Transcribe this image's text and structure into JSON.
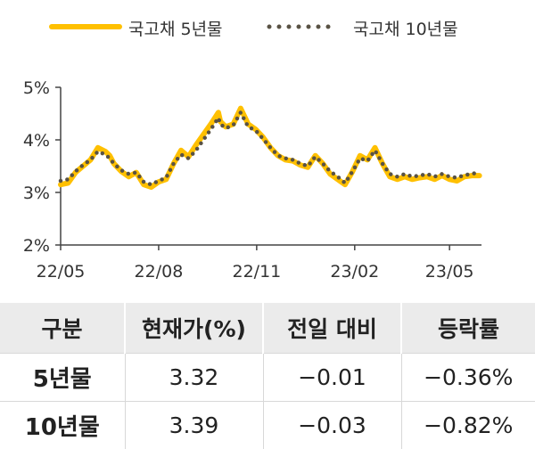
{
  "colors": {
    "series_5y": "#ffc000",
    "series_10y": "#595244",
    "axis": "#444444"
  },
  "chart_data": {
    "type": "line",
    "title": "",
    "xlabel": "",
    "ylabel": "",
    "legend_position": "top",
    "grid": false,
    "ylim": [
      2,
      5
    ],
    "yticks": [
      2,
      3,
      4,
      5
    ],
    "ytick_labels": [
      "2%",
      "3%",
      "4%",
      "5%"
    ],
    "xlim": [
      "2022-05-01",
      "2023-05-31"
    ],
    "xticks": [
      "2022-05-01",
      "2022-08-01",
      "2022-11-01",
      "2023-02-01",
      "2023-05-01"
    ],
    "xtick_labels": [
      "22/05",
      "22/08",
      "22/11",
      "23/02",
      "23/05"
    ],
    "series": [
      {
        "name": "국고채 5년물",
        "style": "solid-thick",
        "x": [
          "2022-05-01",
          "2022-05-08",
          "2022-05-15",
          "2022-05-22",
          "2022-05-29",
          "2022-06-05",
          "2022-06-12",
          "2022-06-16",
          "2022-06-20",
          "2022-06-27",
          "2022-07-04",
          "2022-07-11",
          "2022-07-18",
          "2022-07-25",
          "2022-08-01",
          "2022-08-08",
          "2022-08-15",
          "2022-08-22",
          "2022-08-29",
          "2022-09-05",
          "2022-09-12",
          "2022-09-19",
          "2022-09-26",
          "2022-09-28",
          "2022-10-03",
          "2022-10-10",
          "2022-10-17",
          "2022-10-24",
          "2022-10-31",
          "2022-11-07",
          "2022-11-14",
          "2022-11-21",
          "2022-11-28",
          "2022-12-05",
          "2022-12-12",
          "2022-12-19",
          "2022-12-26",
          "2023-01-02",
          "2023-01-09",
          "2023-01-16",
          "2023-01-23",
          "2023-01-30",
          "2023-02-06",
          "2023-02-13",
          "2023-02-20",
          "2023-02-27",
          "2023-03-06",
          "2023-03-13",
          "2023-03-20",
          "2023-03-27",
          "2023-04-03",
          "2023-04-10",
          "2023-04-17",
          "2023-04-24",
          "2023-05-01",
          "2023-05-08",
          "2023-05-15",
          "2023-05-22",
          "2023-05-29"
        ],
        "values": [
          3.15,
          3.18,
          3.38,
          3.5,
          3.62,
          3.85,
          3.78,
          3.7,
          3.55,
          3.4,
          3.3,
          3.38,
          3.15,
          3.1,
          3.2,
          3.25,
          3.55,
          3.8,
          3.68,
          3.9,
          4.1,
          4.3,
          4.52,
          4.35,
          4.25,
          4.3,
          4.6,
          4.3,
          4.2,
          4.05,
          3.85,
          3.7,
          3.62,
          3.6,
          3.52,
          3.48,
          3.7,
          3.55,
          3.35,
          3.25,
          3.15,
          3.4,
          3.7,
          3.62,
          3.85,
          3.55,
          3.3,
          3.25,
          3.3,
          3.25,
          3.28,
          3.3,
          3.25,
          3.32,
          3.25,
          3.22,
          3.3,
          3.32,
          3.32
        ]
      },
      {
        "name": "국고채 10년물",
        "style": "dotted",
        "x": [
          "2022-05-01",
          "2022-05-08",
          "2022-05-15",
          "2022-05-22",
          "2022-05-29",
          "2022-06-05",
          "2022-06-12",
          "2022-06-16",
          "2022-06-20",
          "2022-06-27",
          "2022-07-04",
          "2022-07-11",
          "2022-07-18",
          "2022-07-25",
          "2022-08-01",
          "2022-08-08",
          "2022-08-15",
          "2022-08-22",
          "2022-08-29",
          "2022-09-05",
          "2022-09-12",
          "2022-09-19",
          "2022-09-26",
          "2022-09-28",
          "2022-10-03",
          "2022-10-10",
          "2022-10-17",
          "2022-10-24",
          "2022-10-31",
          "2022-11-07",
          "2022-11-14",
          "2022-11-21",
          "2022-11-28",
          "2022-12-05",
          "2022-12-12",
          "2022-12-19",
          "2022-12-26",
          "2023-01-02",
          "2023-01-09",
          "2023-01-16",
          "2023-01-23",
          "2023-01-30",
          "2023-02-06",
          "2023-02-13",
          "2023-02-20",
          "2023-02-27",
          "2023-03-06",
          "2023-03-13",
          "2023-03-20",
          "2023-03-27",
          "2023-04-03",
          "2023-04-10",
          "2023-04-17",
          "2023-04-24",
          "2023-05-01",
          "2023-05-08",
          "2023-05-15",
          "2023-05-22",
          "2023-05-29"
        ],
        "values": [
          3.22,
          3.25,
          3.4,
          3.52,
          3.62,
          3.78,
          3.72,
          3.65,
          3.55,
          3.42,
          3.35,
          3.38,
          3.2,
          3.15,
          3.22,
          3.28,
          3.55,
          3.72,
          3.65,
          3.8,
          4.0,
          4.2,
          4.42,
          4.3,
          4.22,
          4.28,
          4.52,
          4.25,
          4.18,
          4.02,
          3.85,
          3.7,
          3.65,
          3.62,
          3.55,
          3.5,
          3.68,
          3.55,
          3.4,
          3.3,
          3.18,
          3.4,
          3.65,
          3.6,
          3.8,
          3.55,
          3.35,
          3.3,
          3.35,
          3.3,
          3.32,
          3.35,
          3.3,
          3.35,
          3.3,
          3.28,
          3.33,
          3.35,
          3.39
        ]
      }
    ]
  },
  "table": {
    "headers": [
      "구분",
      "현재가(%)",
      "전일 대비",
      "등락률"
    ],
    "rows": [
      [
        "5년물",
        "3.32",
        "−0.01",
        "−0.36%"
      ],
      [
        "10년물",
        "3.39",
        "−0.03",
        "−0.82%"
      ]
    ]
  }
}
